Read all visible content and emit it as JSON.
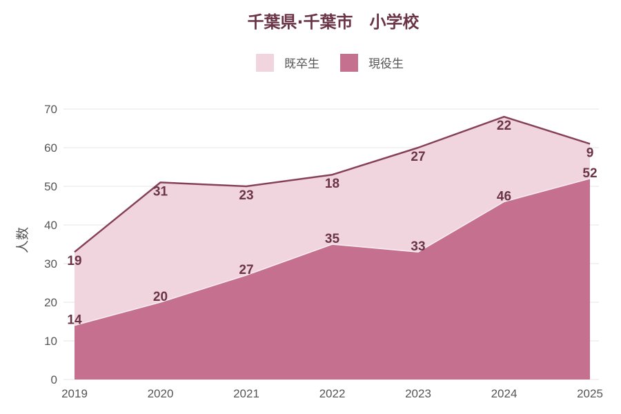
{
  "chart_data": {
    "type": "area",
    "stacked": true,
    "title": "千葉県·千葉市　小学校",
    "ylabel": "人数",
    "xlabel": "",
    "x": [
      "2019",
      "2020",
      "2021",
      "2022",
      "2023",
      "2024",
      "2025"
    ],
    "ylim": [
      0,
      70
    ],
    "yticks": [
      0,
      10,
      20,
      30,
      40,
      50,
      60,
      70
    ],
    "grid": true,
    "legend_position": "top-center",
    "series": [
      {
        "name": "現役生",
        "values": [
          14,
          20,
          27,
          35,
          33,
          46,
          52
        ],
        "color": "#c5708e"
      },
      {
        "name": "既卒生",
        "values": [
          19,
          31,
          23,
          18,
          27,
          22,
          9
        ],
        "color": "#f0d5df",
        "line_color": "#864157"
      }
    ]
  }
}
